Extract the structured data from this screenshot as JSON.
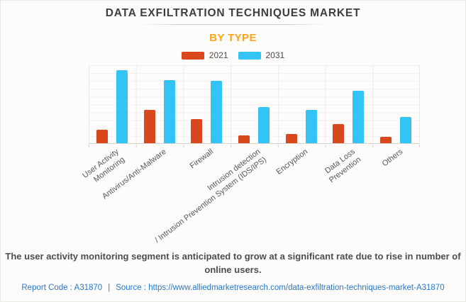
{
  "header": {
    "title": "DATA EXFILTRATION TECHNIQUES MARKET",
    "subtitle": "BY TYPE"
  },
  "legend": [
    {
      "label": "2021",
      "color": "#d8481c"
    },
    {
      "label": "2031",
      "color": "#33c3f5"
    }
  ],
  "chart_data": {
    "type": "bar",
    "title": "DATA EXFILTRATION TECHNIQUES MARKET",
    "subtitle": "BY TYPE",
    "categories": [
      "User Activity Monitoring",
      "Antivirus/Anti-Malware",
      "Firewall",
      "Intrusion detection / Intrusion Prevention System (IDS/IPS)",
      "Encryption",
      "Data Loss Prevention",
      "Others"
    ],
    "category_label_lines": [
      [
        "User Activity",
        "Monitoring"
      ],
      [
        "Antivirus/Anti-Malware"
      ],
      [
        "Firewall"
      ],
      [
        "Intrusion detection",
        "/ Intrusion Prevention System (IDS/IPS)"
      ],
      [
        "Encryption"
      ],
      [
        "Data Loss",
        "Prevention"
      ],
      [
        "Others"
      ]
    ],
    "series": [
      {
        "name": "2021",
        "color": "#d8481c",
        "values": [
          17,
          42,
          31,
          10,
          12,
          24,
          8
        ]
      },
      {
        "name": "2031",
        "color": "#33c3f5",
        "values": [
          93,
          80,
          79,
          46,
          42,
          67,
          33
        ]
      }
    ],
    "xlabel": "",
    "ylabel": "",
    "ylim": [
      0,
      100
    ],
    "y_axis_labels_visible": false,
    "values_are_relative_estimates": true,
    "grid": true,
    "legend_position": "top"
  },
  "description": "The user activity monitoring segment is anticipated to grow at a significant rate due to rise in number of online users.",
  "footer": {
    "report_code": "Report Code : A31870",
    "separator": "|",
    "source_label": "Source :",
    "source_url": "https://www.alliedmarketresearch.com/data-exfiltration-techniques-market-A31870"
  },
  "colors": {
    "accent_orange": "#f9a51b",
    "series_2021": "#d8481c",
    "series_2031": "#33c3f5",
    "link_blue": "#2778c8",
    "title_text": "#3e3e3e",
    "background": "#fdfcfa"
  }
}
